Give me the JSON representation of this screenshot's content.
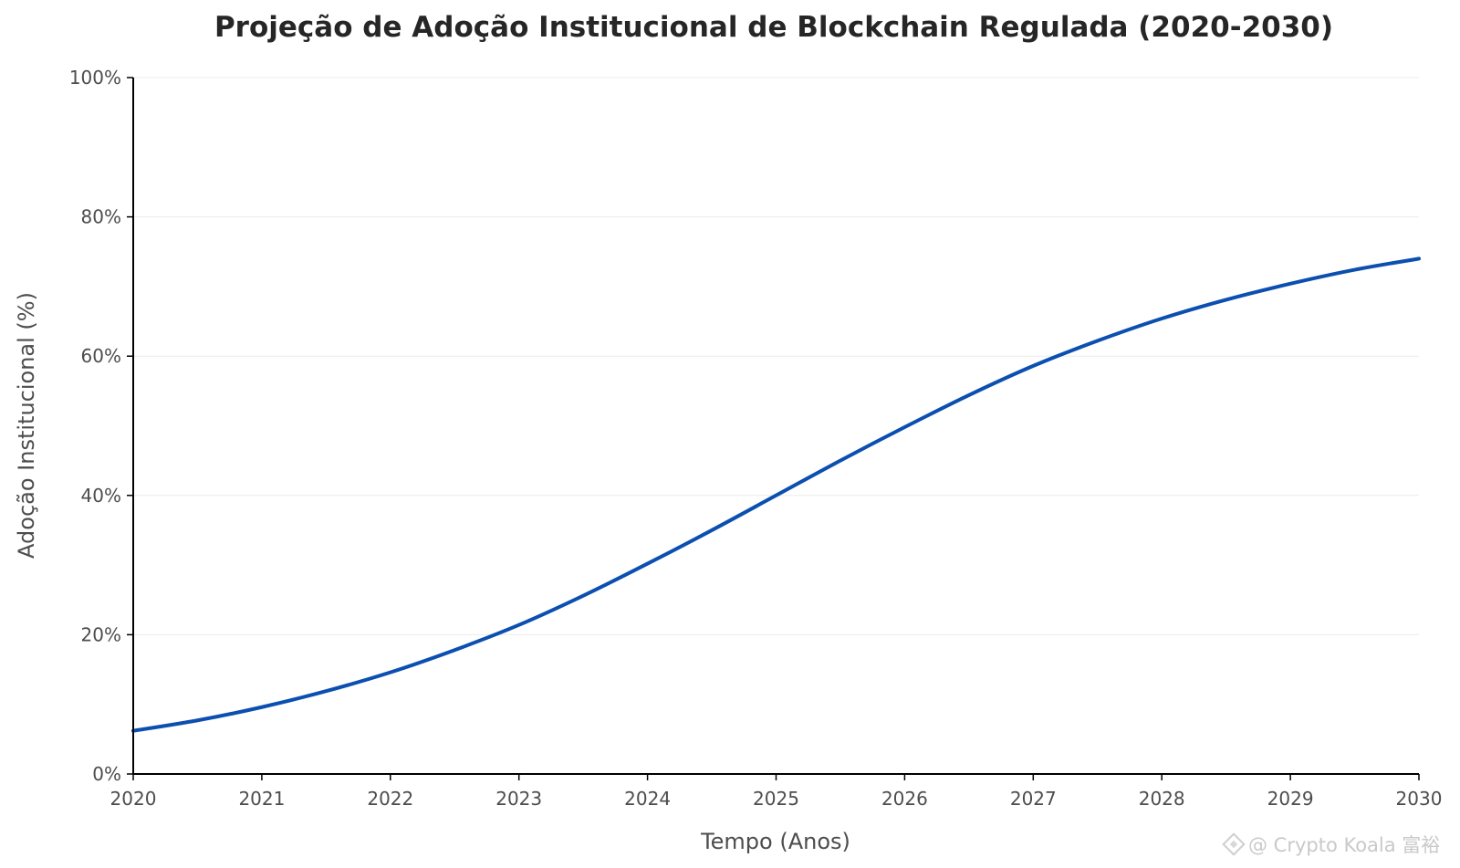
{
  "chart_data": {
    "type": "line",
    "title": "Projeção de Adoção Institucional de Blockchain Regulada (2020-2030)",
    "xlabel": "Tempo (Anos)",
    "ylabel": "Adoção Institucional (%)",
    "xlim": [
      2020,
      2030
    ],
    "ylim": [
      0,
      100
    ],
    "x_ticks": [
      2020,
      2021,
      2022,
      2023,
      2024,
      2025,
      2026,
      2027,
      2028,
      2029,
      2030
    ],
    "y_ticks": [
      0,
      20,
      40,
      60,
      80,
      100
    ],
    "y_tick_labels": [
      "0%",
      "20%",
      "40%",
      "60%",
      "80%",
      "100%"
    ],
    "grid": "horizontal",
    "series": [
      {
        "color": "#0b4fb0",
        "x": [
          2020,
          2020.5,
          2021,
          2021.5,
          2022,
          2022.5,
          2023,
          2023.5,
          2024,
          2024.5,
          2025,
          2025.5,
          2026,
          2026.5,
          2027,
          2027.5,
          2028,
          2028.5,
          2029,
          2029.5,
          2030
        ],
        "y": [
          6.2,
          7.7,
          9.6,
          11.9,
          14.6,
          17.8,
          21.4,
          25.6,
          30.2,
          35.0,
          40.0,
          45.0,
          49.8,
          54.4,
          58.6,
          62.2,
          65.4,
          68.1,
          70.4,
          72.4,
          74.0
        ]
      }
    ]
  },
  "watermark": {
    "text": "@ Crypto Koala 富裕"
  }
}
